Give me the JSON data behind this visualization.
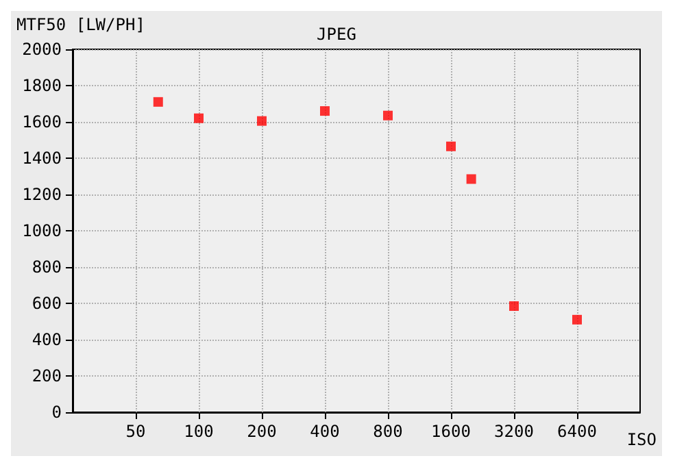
{
  "chart_data": {
    "type": "scatter",
    "title": "JPEG",
    "ylabel": "MTF50 [LW/PH]",
    "xlabel": "ISO",
    "x": [
      64,
      100,
      200,
      400,
      800,
      1600,
      2000,
      3200,
      6400
    ],
    "values": [
      1710,
      1620,
      1605,
      1660,
      1635,
      1465,
      1285,
      585,
      510
    ],
    "color": "#ff0000",
    "marker": "square",
    "log": "x",
    "grid": true,
    "xlim": [
      25,
      12800
    ],
    "xticks": [
      50,
      100,
      200,
      400,
      800,
      1600,
      3200,
      6400
    ],
    "ylim": [
      0,
      2000
    ],
    "yticks": [
      0,
      200,
      400,
      600,
      800,
      1000,
      1200,
      1400,
      1600,
      1800,
      2000
    ]
  }
}
